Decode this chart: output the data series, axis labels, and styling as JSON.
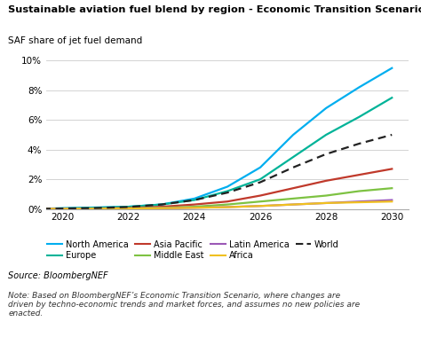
{
  "title": "Sustainable aviation fuel blend by region - Economic Transition Scenario",
  "ylabel": "SAF share of jet fuel demand",
  "ylim": [
    0,
    0.1
  ],
  "xlim": [
    2019.5,
    2030.5
  ],
  "yticks": [
    0,
    0.02,
    0.04,
    0.06,
    0.08,
    0.1
  ],
  "xticks": [
    2020,
    2022,
    2024,
    2026,
    2028,
    2030
  ],
  "years": [
    2019,
    2020,
    2021,
    2022,
    2023,
    2024,
    2025,
    2026,
    2027,
    2028,
    2029,
    2030
  ],
  "series": {
    "North America": {
      "color": "#00AEEF",
      "linestyle": "solid",
      "values": [
        0.0,
        0.0005,
        0.001,
        0.0015,
        0.003,
        0.007,
        0.015,
        0.028,
        0.05,
        0.068,
        0.082,
        0.095
      ]
    },
    "Europe": {
      "color": "#00B398",
      "linestyle": "solid",
      "values": [
        0.0,
        0.0004,
        0.0008,
        0.0015,
        0.003,
        0.006,
        0.012,
        0.02,
        0.035,
        0.05,
        0.062,
        0.075
      ]
    },
    "Asia Pacific": {
      "color": "#C0392B",
      "linestyle": "solid",
      "values": [
        0.0,
        0.0001,
        0.0003,
        0.0007,
        0.0015,
        0.003,
        0.005,
        0.009,
        0.014,
        0.019,
        0.023,
        0.027
      ]
    },
    "Middle East": {
      "color": "#7DC242",
      "linestyle": "solid",
      "values": [
        0.0,
        0.0001,
        0.0002,
        0.0004,
        0.0008,
        0.0015,
        0.003,
        0.005,
        0.007,
        0.009,
        0.012,
        0.014
      ]
    },
    "Latin America": {
      "color": "#9B59B6",
      "linestyle": "solid",
      "values": [
        0.0,
        0.0001,
        0.0002,
        0.0003,
        0.0005,
        0.0008,
        0.0013,
        0.002,
        0.003,
        0.004,
        0.005,
        0.006
      ]
    },
    "Africa": {
      "color": "#F0C020",
      "linestyle": "solid",
      "values": [
        0.0,
        0.0001,
        0.0002,
        0.0003,
        0.0005,
        0.0008,
        0.0012,
        0.002,
        0.003,
        0.004,
        0.0045,
        0.005
      ]
    },
    "World": {
      "color": "#222222",
      "linestyle": "dashed",
      "values": [
        0.0,
        0.0003,
        0.0006,
        0.0013,
        0.003,
        0.006,
        0.011,
        0.018,
        0.028,
        0.037,
        0.044,
        0.05
      ]
    }
  },
  "legend_order": [
    "North America",
    "Europe",
    "Asia Pacific",
    "Middle East",
    "Latin America",
    "Africa",
    "World"
  ],
  "source_text": "Source: BloombergNEF",
  "note_text": "Note: Based on BloombergNEF’s Economic Transition Scenario, where changes are\ndriven by techno-economic trends and market forces, and assumes no new policies are\nenacted.",
  "background_color": "#FFFFFF",
  "grid_color": "#CCCCCC"
}
